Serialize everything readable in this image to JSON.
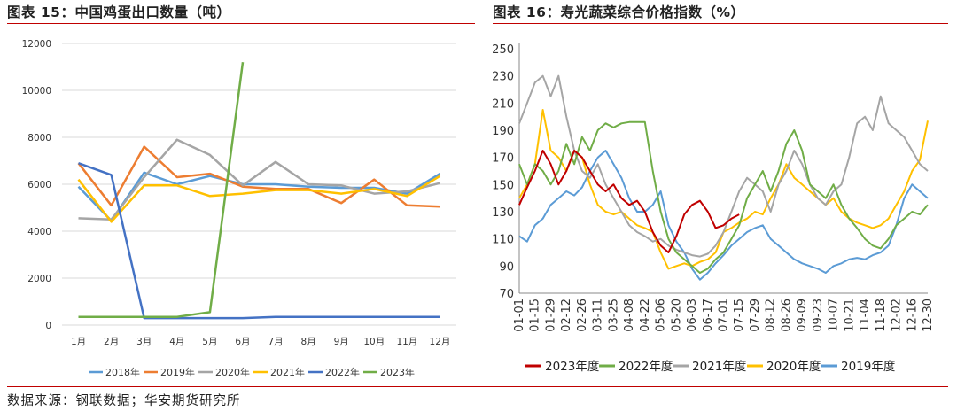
{
  "footer": "数据来源：钢联数据；华安期货研究所",
  "chart_data": [
    {
      "type": "line",
      "title": "图表 15：中国鸡蛋出口数量（吨）",
      "categories": [
        "1月",
        "2月",
        "3月",
        "4月",
        "5月",
        "6月",
        "7月",
        "8月",
        "9月",
        "10月",
        "11月",
        "12月"
      ],
      "ylim": [
        0,
        12000
      ],
      "yticks": [
        0,
        2000,
        4000,
        6000,
        8000,
        10000,
        12000
      ],
      "legend_position": "bottom",
      "grid": true,
      "series": [
        {
          "name": "2018年",
          "color": "#5b9bd5",
          "values": [
            5900,
            4450,
            6500,
            6000,
            6350,
            6000,
            6000,
            5900,
            5850,
            5850,
            5600,
            6450
          ]
        },
        {
          "name": "2019年",
          "color": "#ed7d31",
          "values": [
            6900,
            5100,
            7600,
            6300,
            6450,
            5900,
            5800,
            5800,
            5200,
            6200,
            5100,
            5050
          ]
        },
        {
          "name": "2020年",
          "color": "#a5a5a5",
          "values": [
            4550,
            4500,
            6300,
            7900,
            7250,
            5950,
            6950,
            6000,
            5950,
            5600,
            5700,
            6050
          ]
        },
        {
          "name": "2021年",
          "color": "#ffc000",
          "values": [
            6200,
            4400,
            5950,
            5950,
            5500,
            5600,
            5750,
            5750,
            5600,
            5800,
            5500,
            6350
          ]
        },
        {
          "name": "2022年",
          "color": "#4472c4",
          "values": [
            6900,
            6400,
            300,
            300,
            300,
            300,
            350,
            350,
            350,
            350,
            350,
            350
          ]
        },
        {
          "name": "2023年",
          "color": "#70ad47",
          "values": [
            350,
            350,
            350,
            350,
            550,
            11200,
            null,
            null,
            null,
            null,
            null,
            null
          ]
        }
      ]
    },
    {
      "type": "line",
      "title": "图表 16：寿光蔬菜综合价格指数（%）",
      "categories": [
        "01-01",
        "01-08",
        "01-15",
        "01-22",
        "01-29",
        "02-05",
        "02-12",
        "02-19",
        "02-26",
        "03-04",
        "03-11",
        "03-18",
        "03-25",
        "04-01",
        "04-08",
        "04-15",
        "04-22",
        "04-29",
        "05-06",
        "05-13",
        "05-20",
        "05-27",
        "06-03",
        "06-10",
        "06-17",
        "06-24",
        "07-01",
        "07-08",
        "07-15",
        "07-22",
        "07-29",
        "08-05",
        "08-12",
        "08-19",
        "08-26",
        "09-02",
        "09-09",
        "09-16",
        "09-23",
        "09-30",
        "10-07",
        "10-14",
        "10-21",
        "10-28",
        "11-04",
        "11-11",
        "11-18",
        "11-25",
        "12-02",
        "12-09",
        "12-16",
        "12-23",
        "12-30"
      ],
      "xticks_shown": [
        "01-01",
        "01-15",
        "01-29",
        "02-12",
        "02-26",
        "03-11",
        "03-25",
        "04-08",
        "04-22",
        "05-06",
        "05-20",
        "06-03",
        "06-17",
        "07-01",
        "07-15",
        "07-29",
        "08-12",
        "08-26",
        "09-09",
        "09-23",
        "10-07",
        "10-21",
        "11-04",
        "11-18",
        "12-02",
        "12-16",
        "12-30"
      ],
      "ylim": [
        70,
        250
      ],
      "yticks": [
        70,
        90,
        110,
        130,
        150,
        170,
        190,
        210,
        230,
        250
      ],
      "legend_position": "bottom",
      "grid": false,
      "series": [
        {
          "name": "2023年度",
          "color": "#c00000",
          "values": [
            135,
            148,
            160,
            175,
            165,
            150,
            160,
            175,
            170,
            160,
            150,
            145,
            150,
            140,
            135,
            138,
            130,
            115,
            105,
            100,
            112,
            128,
            135,
            138,
            130,
            118,
            120,
            125,
            128,
            null,
            null,
            null,
            null,
            null,
            null,
            null,
            null,
            null,
            null,
            null,
            null,
            null,
            null,
            null,
            null,
            null,
            null,
            null,
            null,
            null,
            null,
            null,
            null
          ]
        },
        {
          "name": "2022年度",
          "color": "#70ad47",
          "values": [
            165,
            150,
            165,
            160,
            150,
            160,
            180,
            165,
            185,
            175,
            190,
            195,
            192,
            195,
            196,
            196,
            196,
            160,
            130,
            110,
            100,
            95,
            90,
            85,
            88,
            95,
            100,
            110,
            120,
            140,
            150,
            160,
            145,
            160,
            180,
            190,
            175,
            150,
            145,
            140,
            150,
            135,
            125,
            118,
            110,
            105,
            103,
            110,
            120,
            125,
            130,
            128,
            135
          ]
        },
        {
          "name": "2021年度",
          "color": "#a5a5a5",
          "values": [
            195,
            210,
            225,
            230,
            215,
            230,
            200,
            175,
            160,
            155,
            165,
            150,
            140,
            130,
            120,
            115,
            112,
            108,
            110,
            105,
            102,
            100,
            98,
            97,
            99,
            105,
            115,
            130,
            145,
            155,
            150,
            145,
            130,
            150,
            160,
            175,
            165,
            150,
            140,
            135,
            145,
            150,
            170,
            195,
            200,
            190,
            215,
            195,
            190,
            185,
            175,
            165,
            160
          ]
        },
        {
          "name": "2020年度",
          "color": "#ffc000",
          "values": [
            140,
            150,
            165,
            205,
            175,
            170,
            160,
            175,
            170,
            150,
            135,
            130,
            128,
            130,
            125,
            120,
            118,
            115,
            100,
            88,
            90,
            92,
            90,
            93,
            95,
            100,
            115,
            118,
            122,
            125,
            130,
            128,
            140,
            150,
            165,
            155,
            150,
            145,
            140,
            135,
            140,
            130,
            125,
            122,
            120,
            118,
            120,
            125,
            135,
            145,
            160,
            168,
            197
          ]
        },
        {
          "name": "2019年度",
          "color": "#5b9bd5",
          "values": [
            112,
            108,
            120,
            125,
            135,
            140,
            145,
            142,
            148,
            160,
            170,
            175,
            165,
            155,
            140,
            130,
            130,
            135,
            145,
            120,
            108,
            100,
            88,
            80,
            85,
            92,
            98,
            105,
            110,
            115,
            118,
            120,
            110,
            105,
            100,
            95,
            92,
            90,
            88,
            85,
            90,
            92,
            95,
            96,
            95,
            98,
            100,
            105,
            120,
            140,
            150,
            145,
            140
          ]
        }
      ]
    }
  ]
}
